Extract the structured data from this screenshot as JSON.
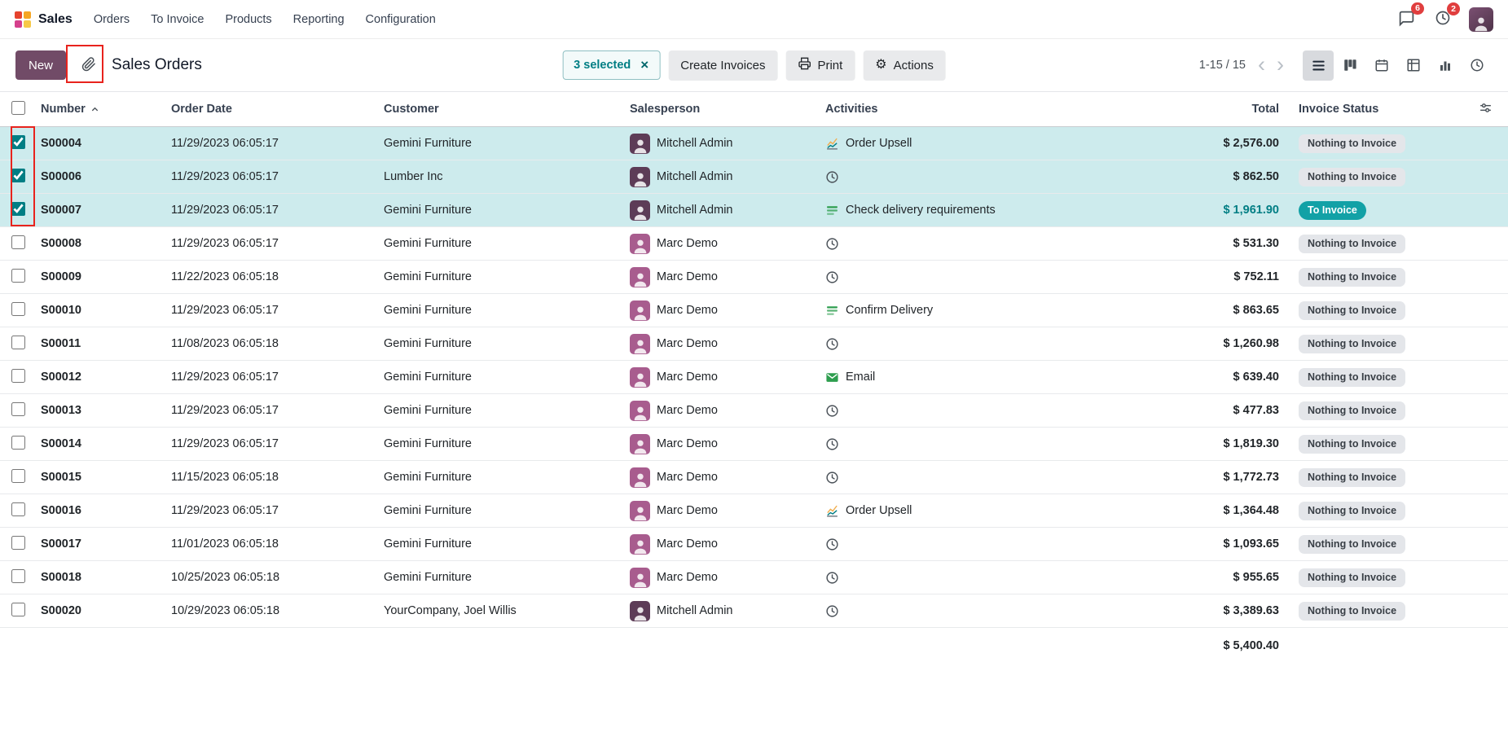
{
  "nav": {
    "app_name": "Sales",
    "menus": [
      "Orders",
      "To Invoice",
      "Products",
      "Reporting",
      "Configuration"
    ],
    "messages_badge": "6",
    "activities_badge": "2"
  },
  "control": {
    "new_label": "New",
    "breadcrumb": "Sales Orders",
    "selected_label": "3 selected",
    "clear_selection": "×",
    "create_invoices_label": "Create Invoices",
    "print_label": "Print",
    "actions_label": "Actions",
    "gear_glyph": "⚙",
    "pager_text": "1-15 / 15",
    "pager_prev": "‹",
    "pager_next": "›"
  },
  "table": {
    "columns": [
      "Number",
      "Order Date",
      "Customer",
      "Salesperson",
      "Activities",
      "Total",
      "Invoice Status"
    ],
    "footer_total": "$ 5,400.40",
    "rows": [
      {
        "number": "S00004",
        "date": "11/29/2023 06:05:17",
        "customer": "Gemini Furniture",
        "salesperson": "Mitchell Admin",
        "avatar": "#5d3c57",
        "activity": {
          "icon": "chart",
          "label": "Order Upsell"
        },
        "total": "$ 2,576.00",
        "total_teal": false,
        "status": "Nothing to Invoice",
        "status_type": "muted",
        "selected": true
      },
      {
        "number": "S00006",
        "date": "11/29/2023 06:05:17",
        "customer": "Lumber Inc",
        "salesperson": "Mitchell Admin",
        "avatar": "#5d3c57",
        "activity": {
          "icon": "clock",
          "label": ""
        },
        "total": "$ 862.50",
        "total_teal": false,
        "status": "Nothing to Invoice",
        "status_type": "muted",
        "selected": true
      },
      {
        "number": "S00007",
        "date": "11/29/2023 06:05:17",
        "customer": "Gemini Furniture",
        "salesperson": "Mitchell Admin",
        "avatar": "#5d3c57",
        "activity": {
          "icon": "tasks",
          "label": "Check delivery requirements"
        },
        "total": "$ 1,961.90",
        "total_teal": true,
        "status": "To Invoice",
        "status_type": "info",
        "selected": true
      },
      {
        "number": "S00008",
        "date": "11/29/2023 06:05:17",
        "customer": "Gemini Furniture",
        "salesperson": "Marc Demo",
        "avatar": "#a85c8e",
        "activity": {
          "icon": "clock",
          "label": ""
        },
        "total": "$ 531.30",
        "total_teal": false,
        "status": "Nothing to Invoice",
        "status_type": "muted",
        "selected": false
      },
      {
        "number": "S00009",
        "date": "11/22/2023 06:05:18",
        "customer": "Gemini Furniture",
        "salesperson": "Marc Demo",
        "avatar": "#a85c8e",
        "activity": {
          "icon": "clock",
          "label": ""
        },
        "total": "$ 752.11",
        "total_teal": false,
        "status": "Nothing to Invoice",
        "status_type": "muted",
        "selected": false
      },
      {
        "number": "S00010",
        "date": "11/29/2023 06:05:17",
        "customer": "Gemini Furniture",
        "salesperson": "Marc Demo",
        "avatar": "#a85c8e",
        "activity": {
          "icon": "tasks",
          "label": "Confirm Delivery"
        },
        "total": "$ 863.65",
        "total_teal": false,
        "status": "Nothing to Invoice",
        "status_type": "muted",
        "selected": false
      },
      {
        "number": "S00011",
        "date": "11/08/2023 06:05:18",
        "customer": "Gemini Furniture",
        "salesperson": "Marc Demo",
        "avatar": "#a85c8e",
        "activity": {
          "icon": "clock",
          "label": ""
        },
        "total": "$ 1,260.98",
        "total_teal": false,
        "status": "Nothing to Invoice",
        "status_type": "muted",
        "selected": false
      },
      {
        "number": "S00012",
        "date": "11/29/2023 06:05:17",
        "customer": "Gemini Furniture",
        "salesperson": "Marc Demo",
        "avatar": "#a85c8e",
        "activity": {
          "icon": "email",
          "label": "Email"
        },
        "total": "$ 639.40",
        "total_teal": false,
        "status": "Nothing to Invoice",
        "status_type": "muted",
        "selected": false
      },
      {
        "number": "S00013",
        "date": "11/29/2023 06:05:17",
        "customer": "Gemini Furniture",
        "salesperson": "Marc Demo",
        "avatar": "#a85c8e",
        "activity": {
          "icon": "clock",
          "label": ""
        },
        "total": "$ 477.83",
        "total_teal": false,
        "status": "Nothing to Invoice",
        "status_type": "muted",
        "selected": false
      },
      {
        "number": "S00014",
        "date": "11/29/2023 06:05:17",
        "customer": "Gemini Furniture",
        "salesperson": "Marc Demo",
        "avatar": "#a85c8e",
        "activity": {
          "icon": "clock",
          "label": ""
        },
        "total": "$ 1,819.30",
        "total_teal": false,
        "status": "Nothing to Invoice",
        "status_type": "muted",
        "selected": false
      },
      {
        "number": "S00015",
        "date": "11/15/2023 06:05:18",
        "customer": "Gemini Furniture",
        "salesperson": "Marc Demo",
        "avatar": "#a85c8e",
        "activity": {
          "icon": "clock",
          "label": ""
        },
        "total": "$ 1,772.73",
        "total_teal": false,
        "status": "Nothing to Invoice",
        "status_type": "muted",
        "selected": false
      },
      {
        "number": "S00016",
        "date": "11/29/2023 06:05:17",
        "customer": "Gemini Furniture",
        "salesperson": "Marc Demo",
        "avatar": "#a85c8e",
        "activity": {
          "icon": "chart",
          "label": "Order Upsell"
        },
        "total": "$ 1,364.48",
        "total_teal": false,
        "status": "Nothing to Invoice",
        "status_type": "muted",
        "selected": false
      },
      {
        "number": "S00017",
        "date": "11/01/2023 06:05:18",
        "customer": "Gemini Furniture",
        "salesperson": "Marc Demo",
        "avatar": "#a85c8e",
        "activity": {
          "icon": "clock",
          "label": ""
        },
        "total": "$ 1,093.65",
        "total_teal": false,
        "status": "Nothing to Invoice",
        "status_type": "muted",
        "selected": false
      },
      {
        "number": "S00018",
        "date": "10/25/2023 06:05:18",
        "customer": "Gemini Furniture",
        "salesperson": "Marc Demo",
        "avatar": "#a85c8e",
        "activity": {
          "icon": "clock",
          "label": ""
        },
        "total": "$ 955.65",
        "total_teal": false,
        "status": "Nothing to Invoice",
        "status_type": "muted",
        "selected": false
      },
      {
        "number": "S00020",
        "date": "10/29/2023 06:05:18",
        "customer": "YourCompany, Joel Willis",
        "salesperson": "Mitchell Admin",
        "avatar": "#5d3c57",
        "activity": {
          "icon": "clock",
          "label": ""
        },
        "total": "$ 3,389.63",
        "total_teal": false,
        "status": "Nothing to Invoice",
        "status_type": "muted",
        "selected": false
      }
    ]
  },
  "colors": {
    "accent": "#714B67",
    "teal": "#017E84",
    "selected_row_bg": "#cdebed",
    "status_info_bg": "#12a1a6",
    "status_muted_bg": "#e4e6ea",
    "annotation_red": "#e8231d",
    "badge_count_bg": "#e03e3e"
  }
}
